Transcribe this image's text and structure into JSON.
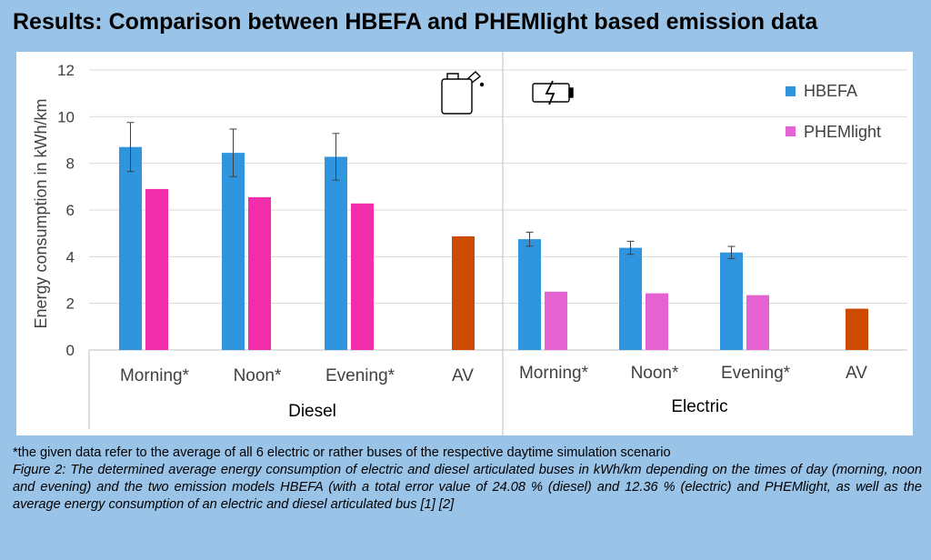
{
  "header": {
    "title": "Results: Comparison between HBEFA and PHEMlight based emission data"
  },
  "colors": {
    "hbefa": "#2e95de",
    "phemlight_diesel": "#f12dab",
    "phemlight_electric": "#e562d3",
    "av": "#cc4b00",
    "background": "#9ac3e8"
  },
  "icons": {
    "diesel": "fuel-canister-icon",
    "electric": "battery-charging-icon"
  },
  "chart_data": {
    "type": "bar",
    "ylabel": "Energy consumption in kWh/km",
    "ylim": [
      0,
      12
    ],
    "yticks": [
      "0",
      "2",
      "4",
      "6",
      "8",
      "10",
      "12"
    ],
    "grid": true,
    "legend_position": "top-right",
    "legend": [
      "HBEFA",
      "PHEMlight"
    ],
    "groups": [
      {
        "name": "Diesel",
        "categories": [
          "Morning*",
          "Noon*",
          "Evening*",
          "AV"
        ],
        "series": [
          {
            "name": "HBEFA",
            "values": [
              8.7,
              8.45,
              8.28,
              null
            ],
            "error": [
              1.05,
              1.02,
              1.0,
              null
            ]
          },
          {
            "name": "PHEMlight",
            "values": [
              6.9,
              6.55,
              6.28,
              null
            ]
          },
          {
            "values": [
              null,
              null,
              null,
              4.87
            ]
          }
        ]
      },
      {
        "name": "Electric",
        "categories": [
          "Morning*",
          "Noon*",
          "Evening*",
          "AV"
        ],
        "series": [
          {
            "name": "HBEFA",
            "values": [
              4.75,
              4.38,
              4.18,
              null
            ],
            "error": [
              0.3,
              0.28,
              0.26,
              null
            ]
          },
          {
            "name": "PHEMlight",
            "values": [
              2.5,
              2.43,
              2.35,
              null
            ]
          },
          {
            "values": [
              null,
              null,
              null,
              1.77
            ]
          }
        ]
      }
    ]
  },
  "footnote": {
    "note": "*the given data refer to the average of all 6 electric or rather buses of the respective daytime simulation scenario",
    "caption": "Figure 2: The determined average energy consumption of electric and diesel articulated buses in kWh/km depending on the times of day (morning, noon and evening) and the two emission models HBEFA (with a total error value of 24.08 % (diesel) and 12.36 % (electric) and PHEMlight, as well as the average energy consumption of an electric and diesel articulated bus [1] [2]"
  }
}
